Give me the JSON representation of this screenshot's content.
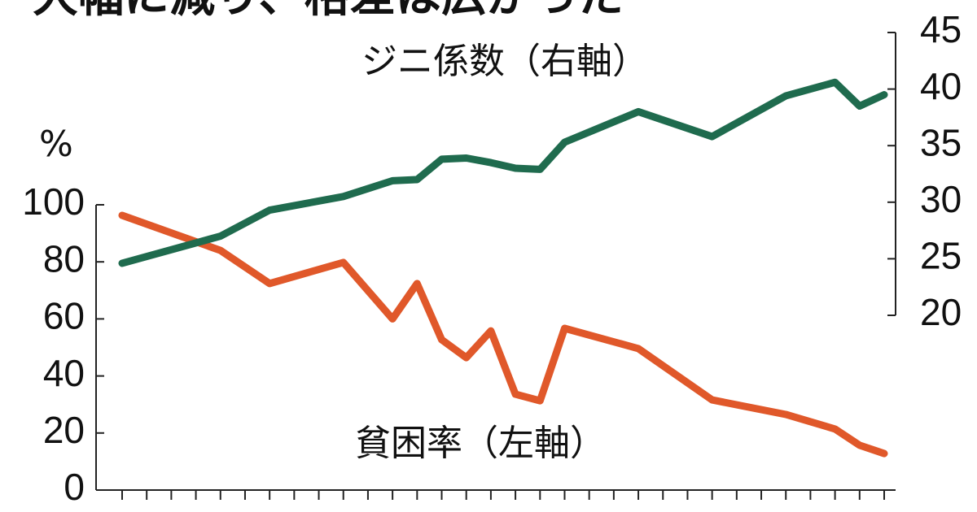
{
  "chart_data": {
    "type": "line",
    "title": "大幅に減り、格差は広がった",
    "y_label": "%",
    "x": [
      0,
      4,
      6,
      9,
      11,
      12,
      13,
      14,
      15,
      16,
      17,
      18,
      21,
      24,
      27,
      29,
      30,
      31
    ],
    "xlim": [
      0,
      31
    ],
    "xticks": [
      0,
      1,
      2,
      3,
      4,
      5,
      6,
      7,
      8,
      9,
      10,
      11,
      12,
      13,
      14,
      15,
      16,
      17,
      18,
      19,
      20,
      21,
      22,
      23,
      24,
      25,
      26,
      27,
      28,
      29,
      30,
      31
    ],
    "ylim": [
      0,
      100
    ],
    "yticks": [
      0,
      20,
      40,
      60,
      80,
      100
    ],
    "y2lim": [
      20,
      45
    ],
    "y2ticks": [
      20,
      25,
      30,
      35,
      40,
      45
    ],
    "series": [
      {
        "name": "貧困率（左軸）",
        "color": "#e0582a",
        "values": [
          96.3,
          84,
          72.4,
          79.8,
          60,
          72.4,
          52.7,
          46.4,
          55.8,
          33.6,
          31.3,
          56.7,
          49.6,
          31.6,
          26.5,
          21.4,
          15.7,
          12.8
        ]
      },
      {
        "name": "ジニ係数（右軸）",
        "color": "#1f6b4e",
        "axis": "y2",
        "values": [
          24.6,
          27.0,
          29.3,
          30.5,
          31.9,
          32.0,
          33.8,
          33.9,
          33.5,
          33.0,
          32.9,
          35.3,
          38.0,
          35.8,
          39.4,
          40.6,
          38.5,
          39.5
        ]
      }
    ]
  }
}
